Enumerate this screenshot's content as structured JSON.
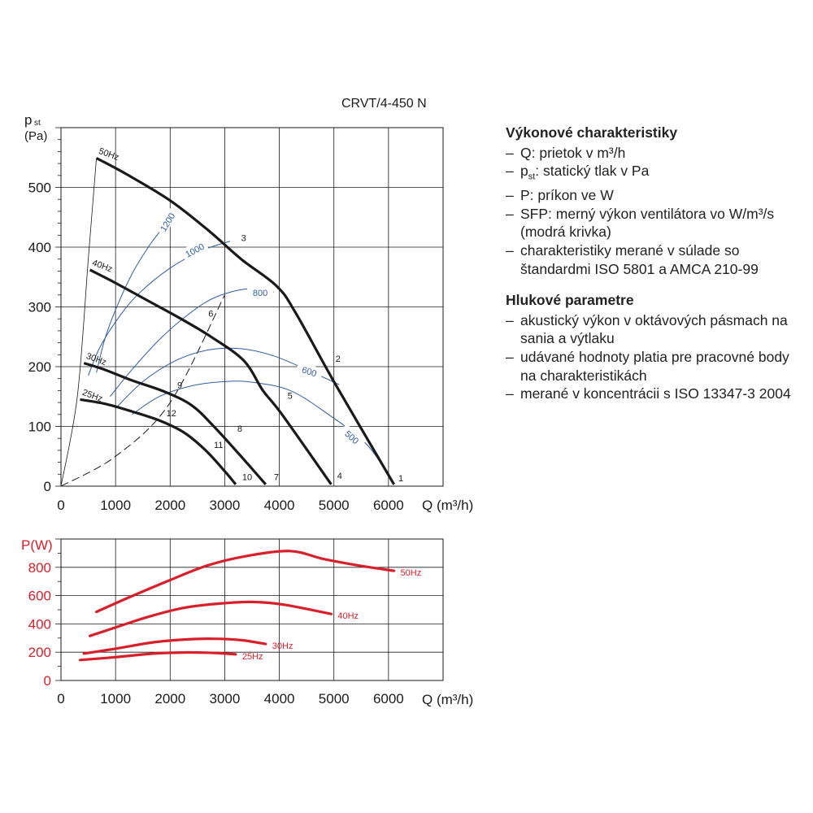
{
  "colors": {
    "axis": "#1a1a1a",
    "curve": "#1a1a1a",
    "sfp": "#2d5ea3",
    "power": "#d9202a",
    "grid": "#1a1a1a"
  },
  "chart_data": [
    {
      "type": "line",
      "title": "CRVT/4-450 N",
      "ylabel_main": "p",
      "ylabel_sub": "st",
      "ylabel_unit": "(Pa)",
      "xlabel": "Q (m³/h)",
      "xlim": [
        0,
        7000
      ],
      "ylim": [
        0,
        600
      ],
      "xticks": [
        0,
        1000,
        2000,
        3000,
        4000,
        5000,
        6000
      ],
      "yticks": [
        0,
        100,
        200,
        300,
        400,
        500
      ],
      "grid": true,
      "series": [
        {
          "name": "50Hz",
          "x": [
            650,
            1200,
            2000,
            2700,
            3300,
            3950,
            4300,
            5000,
            6100
          ],
          "y": [
            549,
            522,
            478,
            428,
            380,
            335,
            290,
            175,
            3
          ]
        },
        {
          "name": "40Hz",
          "x": [
            530,
            1000,
            1600,
            2200,
            2750,
            3350,
            3700,
            4050,
            4950
          ],
          "y": [
            362,
            340,
            310,
            280,
            250,
            210,
            160,
            120,
            3
          ]
        },
        {
          "name": "30Hz",
          "x": [
            420,
            800,
            1300,
            1900,
            2400,
            2800,
            3250,
            3750
          ],
          "y": [
            206,
            195,
            177,
            158,
            135,
            100,
            55,
            3
          ]
        },
        {
          "name": "25Hz",
          "x": [
            350,
            800,
            1300,
            1800,
            2250,
            2650,
            3000,
            3200
          ],
          "y": [
            145,
            138,
            125,
            110,
            90,
            60,
            25,
            3
          ]
        }
      ],
      "point_labels": [
        {
          "text": "1",
          "x": 6180,
          "y": 8
        },
        {
          "text": "2",
          "x": 5030,
          "y": 208
        },
        {
          "text": "3",
          "x": 3300,
          "y": 410
        },
        {
          "text": "4",
          "x": 5060,
          "y": 12
        },
        {
          "text": "5",
          "x": 4150,
          "y": 146
        },
        {
          "text": "6",
          "x": 2700,
          "y": 284
        },
        {
          "text": "7",
          "x": 3900,
          "y": 10
        },
        {
          "text": "8",
          "x": 3230,
          "y": 91
        },
        {
          "text": "9",
          "x": 2130,
          "y": 164
        },
        {
          "text": "10",
          "x": 3320,
          "y": 10
        },
        {
          "text": "11",
          "x": 2800,
          "y": 64
        },
        {
          "text": "12",
          "x": 1930,
          "y": 117
        }
      ],
      "sfp_curves": [
        {
          "label": "1200",
          "x": [
            650,
            800,
            1000,
            1300,
            1600,
            1800
          ],
          "y": [
            190,
            245,
            295,
            355,
            400,
            425
          ],
          "label_x": 1950,
          "label_y": 442,
          "label_angle": -58
        },
        {
          "label": "1000",
          "x": [
            500,
            700,
            1000,
            1400,
            2000,
            2600,
            3100
          ],
          "y": [
            185,
            230,
            275,
            320,
            365,
            395,
            410
          ],
          "label_x": 2450,
          "label_y": 395,
          "label_angle": -28
        },
        {
          "label": "800",
          "x": [
            900,
            1300,
            1800,
            2300,
            2800,
            3400,
            3900
          ],
          "y": [
            150,
            195,
            245,
            285,
            315,
            330,
            325
          ],
          "label_x": 3650,
          "label_y": 324,
          "label_angle": 0
        },
        {
          "label": "600",
          "x": [
            1000,
            1500,
            2100,
            2700,
            3300,
            3900,
            4500,
            5100
          ],
          "y": [
            130,
            175,
            210,
            228,
            230,
            218,
            195,
            170
          ],
          "label_x": 4550,
          "label_y": 192,
          "label_angle": 18
        },
        {
          "label": "500",
          "x": [
            1300,
            1800,
            2400,
            3000,
            3500,
            4200,
            4900,
            5600,
            6100
          ],
          "y": [
            120,
            150,
            168,
            175,
            174,
            160,
            120,
            70,
            5
          ],
          "label_x": 5330,
          "label_y": 82,
          "label_angle": 42
        }
      ],
      "system_curve": {
        "x": [
          0,
          1000,
          2000,
          3000
        ],
        "y": [
          0,
          50,
          140,
          320
        ],
        "style": "dashed"
      },
      "zero_curve": {
        "x": [
          0,
          300,
          500,
          650
        ],
        "y": [
          0,
          150,
          380,
          549
        ]
      }
    },
    {
      "type": "line",
      "ylabel": "P(W)",
      "xlabel": "Q (m³/h)",
      "xlim": [
        0,
        7000
      ],
      "ylim": [
        0,
        1000
      ],
      "xticks": [
        0,
        1000,
        2000,
        3000,
        4000,
        5000,
        6000
      ],
      "yticks": [
        0,
        200,
        400,
        600,
        800
      ],
      "grid": true,
      "series": [
        {
          "name": "50Hz",
          "x": [
            650,
            1200,
            2000,
            2700,
            3400,
            4200,
            4800,
            5500,
            6100
          ],
          "y": [
            485,
            580,
            710,
            815,
            880,
            915,
            860,
            810,
            775
          ]
        },
        {
          "name": "40Hz",
          "x": [
            530,
            1000,
            1600,
            2200,
            2800,
            3500,
            4100,
            4950
          ],
          "y": [
            315,
            375,
            450,
            510,
            540,
            555,
            535,
            470
          ]
        },
        {
          "name": "30Hz",
          "x": [
            420,
            1000,
            1700,
            2300,
            2800,
            3300,
            3750
          ],
          "y": [
            190,
            225,
            270,
            290,
            295,
            285,
            258
          ]
        },
        {
          "name": "25Hz",
          "x": [
            350,
            1000,
            1700,
            2300,
            2800,
            3200
          ],
          "y": [
            145,
            165,
            190,
            198,
            195,
            185
          ]
        }
      ]
    }
  ],
  "info": {
    "section1_title": "Výkonové charakteristiky",
    "section1_items": [
      "Q: prietok v m³/h",
      "p<sub>st</sub>: statický tlak v Pa",
      "P: príkon ve W",
      "SFP: merný výkon ventilátora vo W/m³/s (modrá krivka)",
      "charakteristiky merané v súlade so štandardmi ISO 5801 a AMCA 210-99"
    ],
    "section2_title": "Hlukové parametre",
    "section2_items": [
      "akustický výkon v oktávových pásmach na sania a výtlaku",
      "udávané hodnoty platia pre pracovné body na charakteristikách",
      "merané v koncentrácii s ISO 13347-3 2004"
    ]
  }
}
